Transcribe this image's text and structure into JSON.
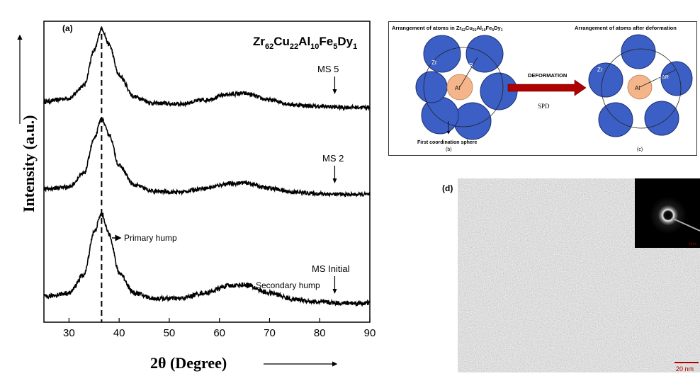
{
  "figure": {
    "panel_a_label": "(a)",
    "panel_d_label": "(d)",
    "composition": {
      "base": "Zr",
      "s1": "62",
      "e2": "Cu",
      "s2": "22",
      "e3": "Al",
      "s3": "10",
      "e4": "Fe",
      "s4": "5",
      "e5": "Dy",
      "s5": "1"
    },
    "annotations": {
      "primary_hump": "Primary hump",
      "secondary_hump": "Secondary hump"
    }
  },
  "chart_data": {
    "type": "line",
    "xlabel": "2θ (Degree)",
    "ylabel": "Intensity (a.u.)",
    "xlim": [
      25,
      90
    ],
    "x_ticks": [
      30,
      40,
      50,
      60,
      70,
      80,
      90
    ],
    "y_ticks_shown": false,
    "grid": false,
    "reference_line_x": 36.5,
    "series": [
      {
        "name": "MS 5",
        "marker_x": 83,
        "x": [
          25,
          30,
          33,
          35,
          36.5,
          38,
          40,
          43,
          47,
          52,
          57,
          62,
          65,
          70,
          75,
          80,
          85,
          90
        ],
        "y": [
          0.1,
          0.14,
          0.3,
          0.72,
          1.0,
          0.8,
          0.42,
          0.16,
          0.08,
          0.07,
          0.12,
          0.19,
          0.2,
          0.12,
          0.06,
          0.04,
          0.03,
          0.03
        ]
      },
      {
        "name": "MS 2",
        "marker_x": 83,
        "x": [
          25,
          30,
          33,
          35,
          36.5,
          38,
          40,
          43,
          47,
          52,
          57,
          62,
          65,
          70,
          75,
          80,
          85,
          90
        ],
        "y": [
          0.1,
          0.13,
          0.3,
          0.74,
          1.0,
          0.8,
          0.4,
          0.15,
          0.07,
          0.06,
          0.11,
          0.17,
          0.18,
          0.11,
          0.06,
          0.04,
          0.03,
          0.03
        ]
      },
      {
        "name": "MS Initial",
        "marker_x": 83,
        "x": [
          25,
          30,
          33,
          35,
          36.5,
          38,
          40,
          43,
          47,
          52,
          57,
          62,
          65,
          70,
          75,
          80,
          85,
          90
        ],
        "y": [
          0.1,
          0.14,
          0.34,
          0.8,
          1.0,
          0.78,
          0.36,
          0.14,
          0.08,
          0.08,
          0.14,
          0.22,
          0.23,
          0.14,
          0.07,
          0.04,
          0.03,
          0.03
        ]
      }
    ]
  },
  "diagram": {
    "left_title_prefix": "Arrangement of atoms in Zr",
    "right_title": "Arrangement of atoms after deformation",
    "zr_label": "Zr",
    "al_label": "Al",
    "r_label": "R",
    "r_delta_label": "R+ΔR",
    "arrow_label": "DEFORMATION",
    "process_label": "SPD",
    "first_sphere_label": "First coordination sphere",
    "sub_b": "(b)",
    "sub_c": "(c)",
    "colors": {
      "atom_zr": "#3b5fc4",
      "atom_al": "#f4b58a",
      "arrow": "#b00000"
    }
  },
  "tem": {
    "scale_bar_label": "20 nm",
    "inset_scale_label": "1/nm"
  }
}
